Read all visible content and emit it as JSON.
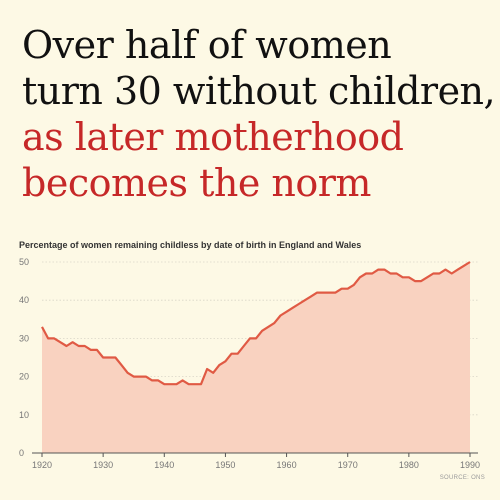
{
  "headline": {
    "line1": "Over half of women",
    "line2": "turn 30 without children,",
    "line3": "as later motherhood",
    "line4": "becomes the norm"
  },
  "source": "SOURCE: ONS",
  "colors": {
    "background": "#fdf9e5",
    "accent": "#c62828",
    "line": "#e05a44",
    "area": "#f9d2c0",
    "grid": "#d9d6c8"
  },
  "chart_data": {
    "type": "area",
    "title": "Percentage of women remaining childless by date of birth in England and Wales",
    "xlabel": "",
    "ylabel": "",
    "xlim": [
      1920,
      1990
    ],
    "ylim": [
      0,
      50
    ],
    "x_ticks": [
      1920,
      1930,
      1940,
      1950,
      1960,
      1970,
      1980,
      1990
    ],
    "y_ticks": [
      0,
      10,
      20,
      30,
      40,
      50
    ],
    "grid": true,
    "legend": "none",
    "x": [
      1920,
      1921,
      1922,
      1923,
      1924,
      1925,
      1926,
      1927,
      1928,
      1929,
      1930,
      1931,
      1932,
      1933,
      1934,
      1935,
      1936,
      1937,
      1938,
      1939,
      1940,
      1941,
      1942,
      1943,
      1944,
      1945,
      1946,
      1947,
      1948,
      1949,
      1950,
      1951,
      1952,
      1953,
      1954,
      1955,
      1956,
      1957,
      1958,
      1959,
      1960,
      1961,
      1962,
      1963,
      1964,
      1965,
      1966,
      1967,
      1968,
      1969,
      1970,
      1971,
      1972,
      1973,
      1974,
      1975,
      1976,
      1977,
      1978,
      1979,
      1980,
      1981,
      1982,
      1983,
      1984,
      1985,
      1986,
      1987,
      1988,
      1989,
      1990
    ],
    "series": [
      {
        "values": [
          33,
          30,
          30,
          29,
          28,
          29,
          28,
          28,
          27,
          27,
          25,
          25,
          25,
          23,
          21,
          20,
          20,
          20,
          19,
          19,
          18,
          18,
          18,
          19,
          18,
          18,
          18,
          22,
          21,
          23,
          24,
          26,
          26,
          28,
          30,
          30,
          32,
          33,
          34,
          36,
          37,
          38,
          39,
          40,
          41,
          42,
          42,
          42,
          42,
          43,
          43,
          44,
          46,
          47,
          47,
          48,
          48,
          47,
          47,
          46,
          46,
          45,
          45,
          46,
          47,
          47,
          48,
          47,
          48,
          49,
          50
        ]
      }
    ]
  }
}
